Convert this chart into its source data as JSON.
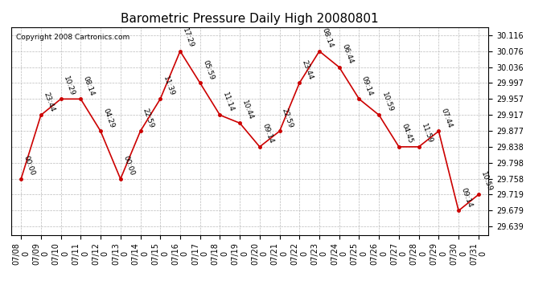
{
  "title": "Barometric Pressure Daily High 20080801",
  "copyright": "Copyright 2008 Cartronics.com",
  "dates": [
    "07/08",
    "07/09",
    "07/10",
    "07/11",
    "07/12",
    "07/13",
    "07/14",
    "07/15",
    "07/16",
    "07/17",
    "07/18",
    "07/19",
    "07/20",
    "07/21",
    "07/22",
    "07/23",
    "07/24",
    "07/25",
    "07/26",
    "07/27",
    "07/28",
    "07/29",
    "07/30",
    "07/31"
  ],
  "values": [
    29.758,
    29.917,
    29.957,
    29.957,
    29.877,
    29.758,
    29.877,
    29.957,
    30.076,
    29.997,
    29.917,
    29.897,
    29.838,
    29.877,
    29.997,
    30.076,
    30.036,
    29.957,
    29.917,
    29.838,
    29.838,
    29.877,
    29.679,
    29.719
  ],
  "times": [
    "00:00",
    "23:44",
    "10:29",
    "08:14",
    "04:29",
    "00:00",
    "22:59",
    "11:39",
    "17:29",
    "05:59",
    "11:14",
    "10:44",
    "09:14",
    "22:59",
    "23:44",
    "08:14",
    "06:44",
    "09:14",
    "10:59",
    "04:45",
    "11:59",
    "07:44",
    "09:14",
    "10:59"
  ],
  "ylim_min": 29.619,
  "ylim_max": 30.136,
  "yticks": [
    29.639,
    29.679,
    29.719,
    29.758,
    29.798,
    29.838,
    29.877,
    29.917,
    29.957,
    29.997,
    30.036,
    30.076,
    30.116
  ],
  "line_color": "#cc0000",
  "marker_color": "#cc0000",
  "bg_color": "#ffffff",
  "grid_color": "#bbbbbb",
  "title_fontsize": 11,
  "label_fontsize": 6.5,
  "tick_fontsize": 7,
  "copyright_fontsize": 6.5
}
